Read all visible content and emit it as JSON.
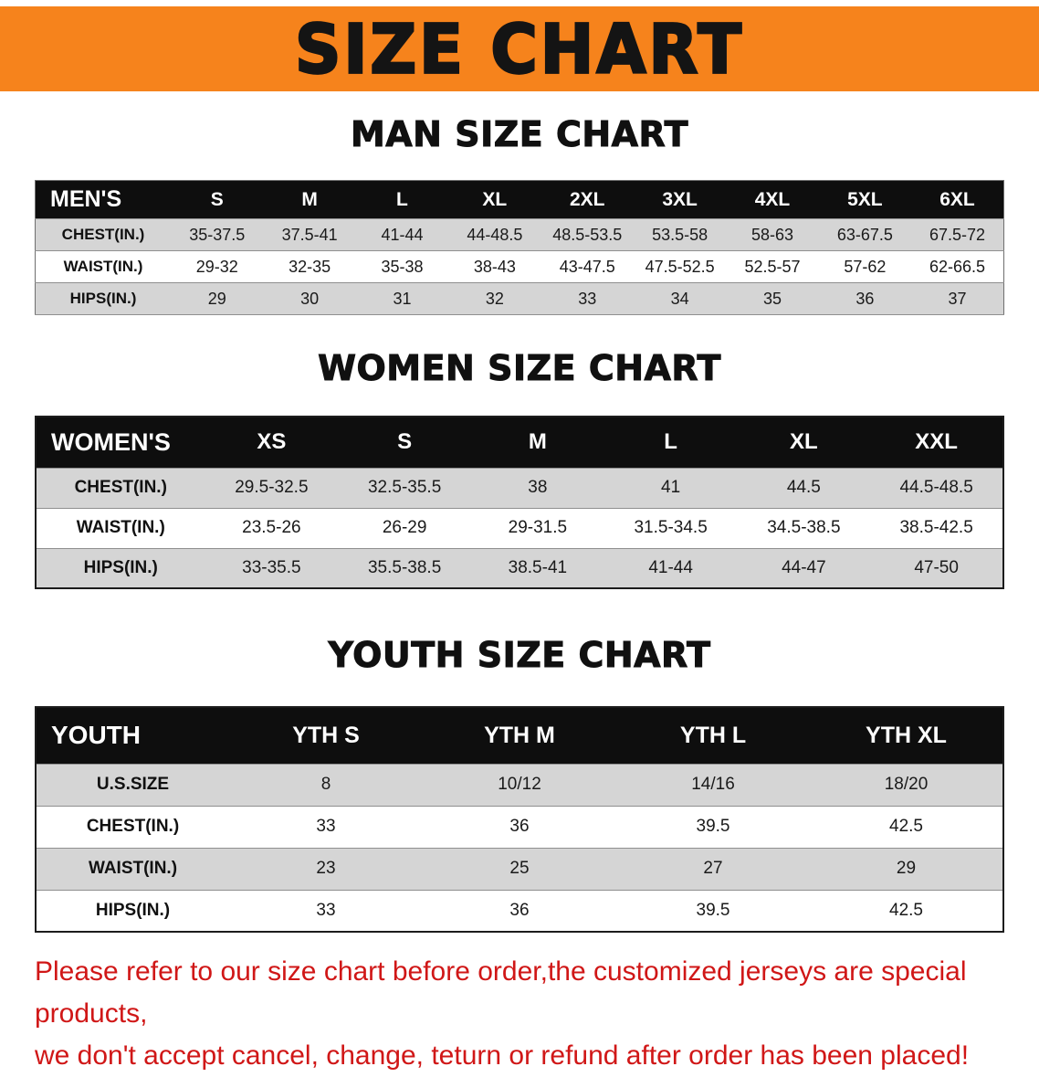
{
  "banner": {
    "title": "SIZE CHART"
  },
  "man": {
    "heading": "MAN SIZE CHART",
    "header": [
      "MEN'S",
      "S",
      "M",
      "L",
      "XL",
      "2XL",
      "3XL",
      "4XL",
      "5XL",
      "6XL"
    ],
    "rows": [
      [
        "CHEST(IN.)",
        "35-37.5",
        "37.5-41",
        "41-44",
        "44-48.5",
        "48.5-53.5",
        "53.5-58",
        "58-63",
        "63-67.5",
        "67.5-72"
      ],
      [
        "WAIST(IN.)",
        "29-32",
        "32-35",
        "35-38",
        "38-43",
        "43-47.5",
        "47.5-52.5",
        "52.5-57",
        "57-62",
        "62-66.5"
      ],
      [
        "HIPS(IN.)",
        "29",
        "30",
        "31",
        "32",
        "33",
        "34",
        "35",
        "36",
        "37"
      ]
    ]
  },
  "women": {
    "heading": "WOMEN SIZE CHART",
    "header": [
      "WOMEN'S",
      "XS",
      "S",
      "M",
      "L",
      "XL",
      "XXL"
    ],
    "rows": [
      [
        "CHEST(IN.)",
        "29.5-32.5",
        "32.5-35.5",
        "38",
        "41",
        "44.5",
        "44.5-48.5"
      ],
      [
        "WAIST(IN.)",
        "23.5-26",
        "26-29",
        "29-31.5",
        "31.5-34.5",
        "34.5-38.5",
        "38.5-42.5"
      ],
      [
        "HIPS(IN.)",
        "33-35.5",
        "35.5-38.5",
        "38.5-41",
        "41-44",
        "44-47",
        "47-50"
      ]
    ]
  },
  "youth": {
    "heading": "YOUTH SIZE CHART",
    "header": [
      "YOUTH",
      "YTH S",
      "YTH M",
      "YTH L",
      "YTH XL"
    ],
    "rows": [
      [
        "U.S.SIZE",
        "8",
        "10/12",
        "14/16",
        "18/20"
      ],
      [
        "CHEST(IN.)",
        "33",
        "36",
        "39.5",
        "42.5"
      ],
      [
        "WAIST(IN.)",
        "23",
        "25",
        "27",
        "29"
      ],
      [
        "HIPS(IN.)",
        "33",
        "36",
        "39.5",
        "42.5"
      ]
    ]
  },
  "disclaimer": {
    "line1": "Please refer to our size chart before order,the customized jerseys are special products,",
    "line2": "we don't accept cancel, change, teturn or refund after order has been placed!"
  },
  "colors": {
    "banner_bg": "#f6831c",
    "header_bg": "#0e0e0e",
    "shaded_row": "#d5d5d5",
    "disclaimer_text": "#d01717"
  }
}
